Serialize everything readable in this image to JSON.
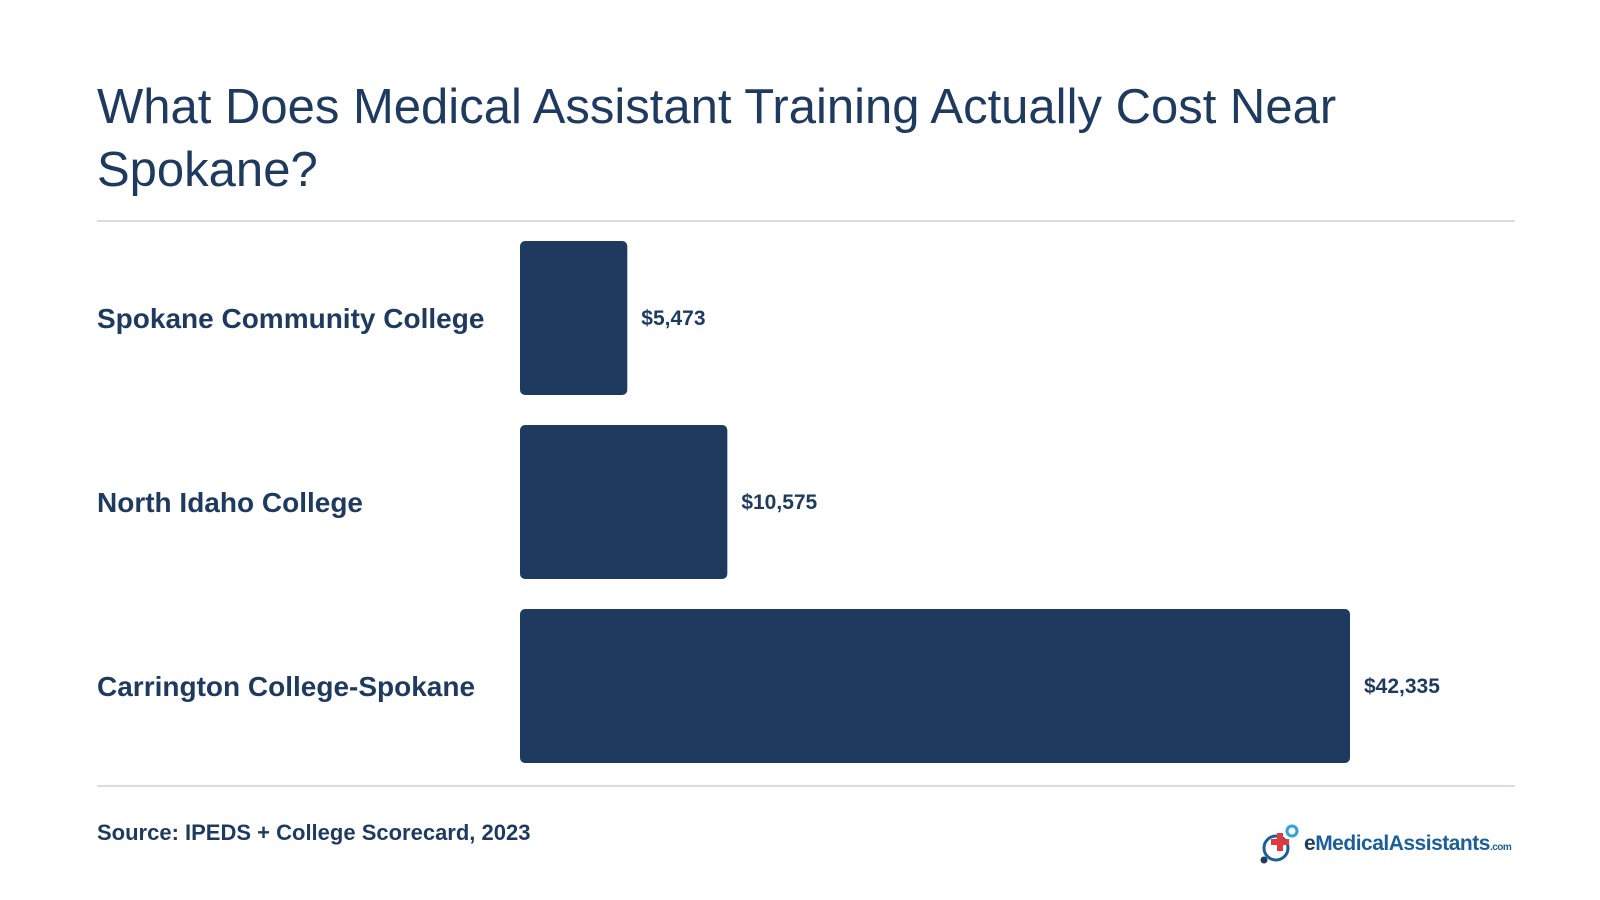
{
  "title": "What Does Medical Assistant Training Actually Cost Near Spokane?",
  "chart_data": {
    "type": "bar",
    "orientation": "horizontal",
    "categories": [
      "Spokane Community College",
      "North Idaho College",
      "Carrington College-Spokane"
    ],
    "values": [
      5473,
      10575,
      42335
    ],
    "value_labels": [
      "$5,473",
      "$10,575",
      "$42,335"
    ],
    "xlim": [
      0,
      42335
    ],
    "grid": false,
    "bar_color": "#1f3a5f"
  },
  "source": "Source: IPEDS + College Scorecard, 2023",
  "logo": {
    "prefix": "e",
    "name": "MedicalAssistants",
    "domain": ".com",
    "icon": "medical-cross-logo-icon"
  },
  "colors": {
    "text": "#1f3a5f",
    "accent": "#1a5f9c",
    "cross": "#e03a3e",
    "rule": "#d9dde3"
  }
}
